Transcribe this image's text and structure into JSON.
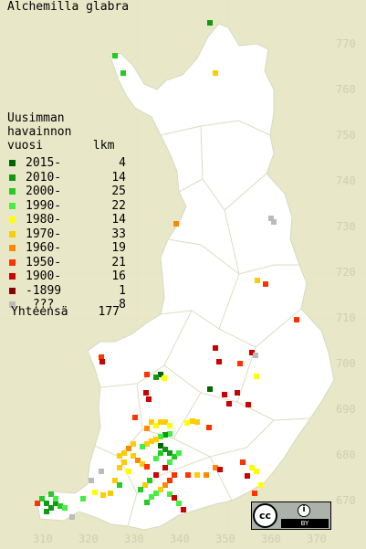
{
  "map": {
    "title": "Alchemilla glabra",
    "legend": {
      "heading_lines": [
        "Uusimman",
        "havainnon",
        "vuosi       lkm"
      ],
      "entries": [
        {
          "label": "2015-",
          "count": "4",
          "color": "#006600"
        },
        {
          "label": "2010-",
          "count": "14",
          "color": "#119911"
        },
        {
          "label": "2000-",
          "count": "25",
          "color": "#22cc22"
        },
        {
          "label": "1990-",
          "count": "22",
          "color": "#44ee44"
        },
        {
          "label": "1980-",
          "count": "14",
          "color": "#ffff00"
        },
        {
          "label": "1970-",
          "count": "33",
          "color": "#ffcc00"
        },
        {
          "label": "1960-",
          "count": "19",
          "color": "#ff8800"
        },
        {
          "label": "1950-",
          "count": "21",
          "color": "#ff3300"
        },
        {
          "label": "1900-",
          "count": "16",
          "color": "#cc0000"
        },
        {
          "label": "-1899",
          "count": "1",
          "color": "#880000"
        },
        {
          "label": " ???",
          "count": "8",
          "color": "#bbbbbb"
        }
      ],
      "total_label": "Yhteensä",
      "total_count": "177"
    },
    "y_axis_ticks": [
      "770",
      "760",
      "750",
      "740",
      "730",
      "720",
      "710",
      "700",
      "690",
      "680",
      "670"
    ],
    "x_axis_ticks": [
      "310",
      "320",
      "330",
      "340",
      "350",
      "360",
      "370"
    ],
    "colors": {
      "background": "#e8e8c8",
      "land": "#ffffff",
      "grid": "#e6e6c6",
      "tick_text": "#cfcfb0"
    },
    "license_badge": {
      "icon": "cc-icon",
      "person_icon": "attribution-person-icon",
      "by_label": "BY"
    }
  }
}
